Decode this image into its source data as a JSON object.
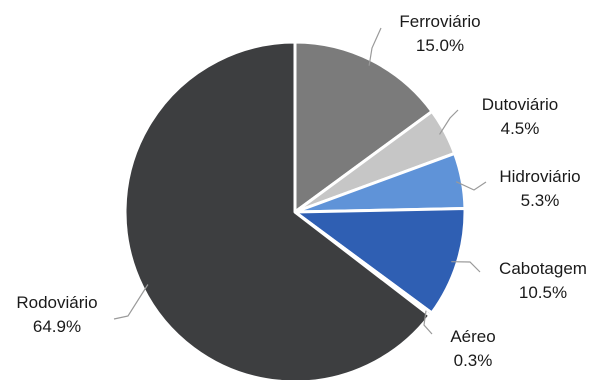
{
  "chart_data": {
    "type": "pie",
    "title": "",
    "slices": [
      {
        "name": "Ferroviário",
        "value": 15.0,
        "label": "15.0%",
        "color": "#7b7b7b"
      },
      {
        "name": "Dutoviário",
        "value": 4.5,
        "label": "4.5%",
        "color": "#c6c6c6"
      },
      {
        "name": "Hidroviário",
        "value": 5.3,
        "label": "5.3%",
        "color": "#5f93d8"
      },
      {
        "name": "Cabotagem",
        "value": 10.5,
        "label": "10.5%",
        "color": "#2f5fb3"
      },
      {
        "name": "Aéreo",
        "value": 0.3,
        "label": "0.3%",
        "color": "#1f3f7a"
      },
      {
        "name": "Rodoviário",
        "value": 64.9,
        "label": "64.9%",
        "color": "#3d3e40"
      }
    ],
    "start_angle": "12 o'clock",
    "direction": "clockwise",
    "legend": "none"
  }
}
